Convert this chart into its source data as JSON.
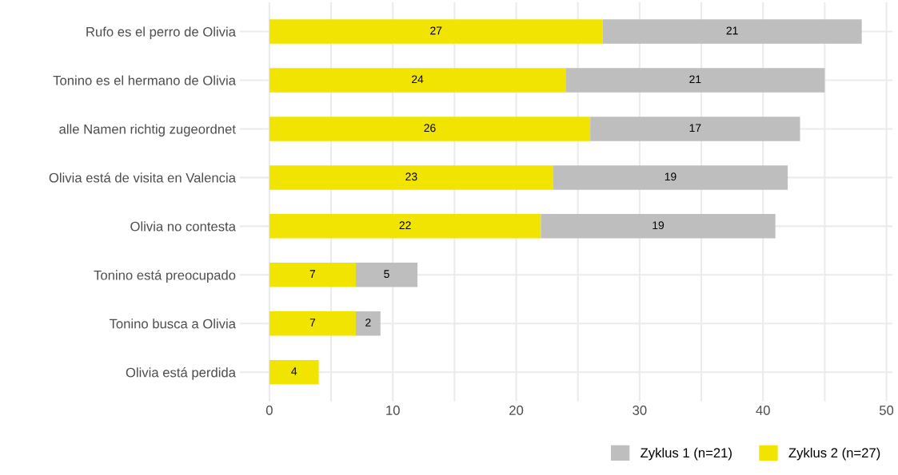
{
  "chart_data": {
    "type": "bar",
    "orientation": "horizontal",
    "stacked": true,
    "categories": [
      "Rufo es el perro de Olivia",
      "Tonino es el hermano de Olivia",
      "alle Namen richtig zugeordnet",
      "Olivia está de visita en Valencia",
      "Olivia no contesta",
      "Tonino está preocupado",
      "Tonino busca a Olivia",
      "Olivia está perdida"
    ],
    "series": [
      {
        "name": "Zyklus 2 (n=27)",
        "color": "#f0e400",
        "values": [
          27,
          24,
          26,
          23,
          22,
          7,
          7,
          4
        ]
      },
      {
        "name": "Zyklus 1 (n=21)",
        "color": "#bebebe",
        "values": [
          21,
          21,
          17,
          19,
          19,
          5,
          2,
          null
        ]
      }
    ],
    "xlim": [
      -2.4,
      50.5
    ],
    "xticks": [
      0,
      {
        "value": 5,
        "label": null
      },
      10,
      {
        "value": 15,
        "label": null
      },
      20,
      {
        "value": 25,
        "label": null
      },
      30,
      {
        "value": 35,
        "label": null
      },
      40,
      {
        "value": 45,
        "label": null
      },
      50
    ],
    "grid": true,
    "data_labels": true,
    "legend": "bottom right"
  }
}
